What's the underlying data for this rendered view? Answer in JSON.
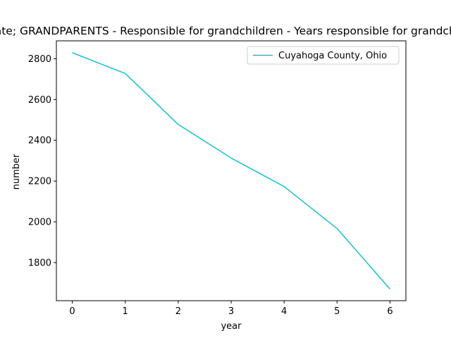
{
  "chart_data": {
    "type": "line",
    "title": "Estimate; GRANDPARENTS - Responsible for grandchildren - Years responsible for grandchildren",
    "xlabel": "year",
    "ylabel": "number",
    "x": [
      0,
      1,
      2,
      3,
      4,
      5,
      6
    ],
    "series": [
      {
        "name": "Cuyahoga County, Ohio",
        "color": "#17becf",
        "values": [
          2830,
          2728,
          2478,
          2313,
          2173,
          1967,
          1670
        ]
      }
    ],
    "xlim": [
      -0.3,
      6.3
    ],
    "ylim": [
      1613,
      2888
    ],
    "xticks": [
      0,
      1,
      2,
      3,
      4,
      5,
      6
    ],
    "yticks": [
      1800,
      2000,
      2200,
      2400,
      2600,
      2800
    ],
    "grid": false,
    "legend": "upper right"
  }
}
